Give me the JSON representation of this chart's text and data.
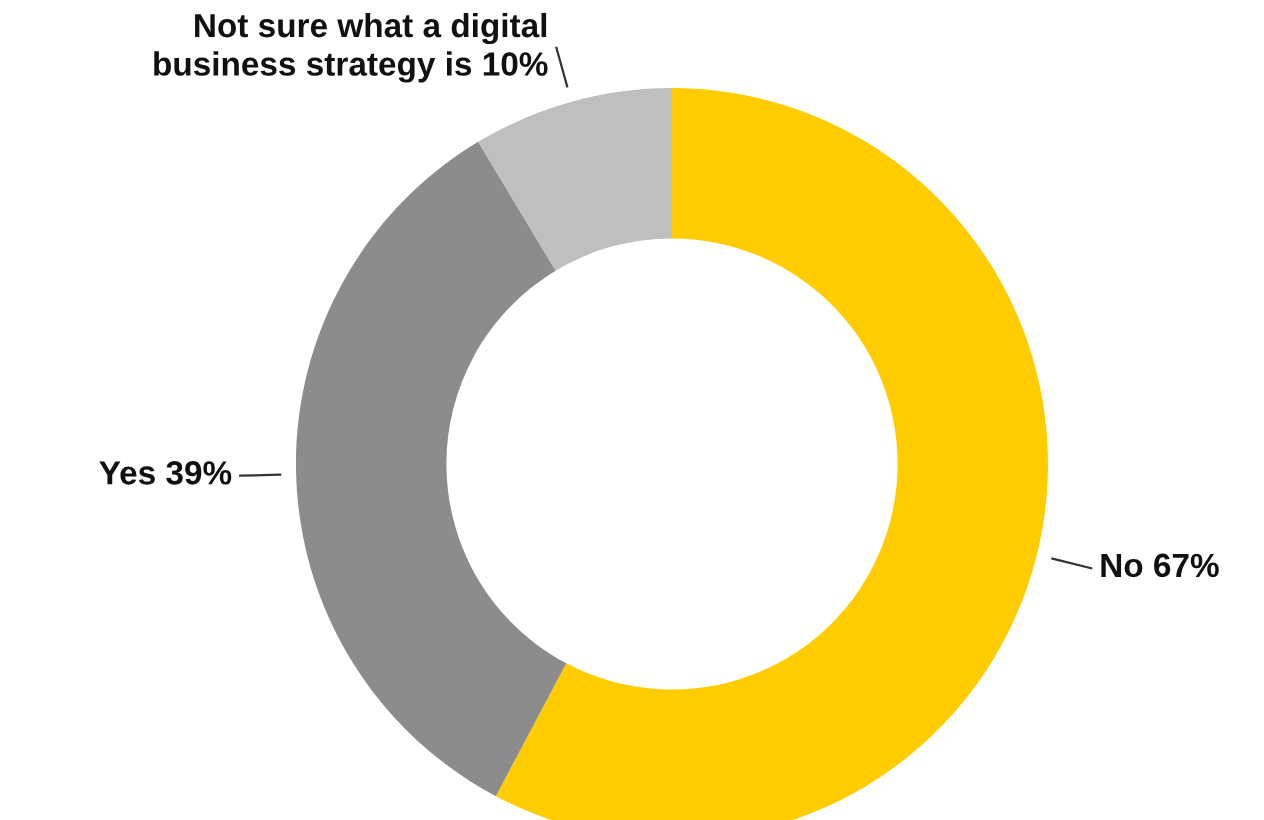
{
  "chart_data": {
    "type": "donut",
    "categories": [
      "No",
      "Yes",
      "Not sure what a digital\nbusiness strategy is"
    ],
    "values": [
      67,
      39,
      10
    ],
    "value_labels": [
      "67%",
      "39%",
      "10%"
    ],
    "colors": [
      "#ffcc00",
      "#8c8c8c",
      "#bfbfbf"
    ],
    "legend": false
  }
}
